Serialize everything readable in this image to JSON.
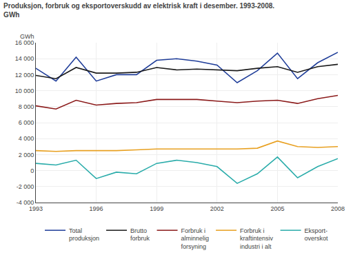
{
  "chart_data": {
    "type": "line",
    "title": "Produksjon, forbruk og eksportoverskudd av elektrisk kraft i desember. 1993-2008.",
    "subtitle": "GWh",
    "ylabel": "GWh",
    "x": [
      1993,
      1994,
      1995,
      1996,
      1997,
      1998,
      1999,
      2000,
      2001,
      2002,
      2003,
      2004,
      2005,
      2006,
      2007,
      2008
    ],
    "series": [
      {
        "name": "Total\nproduksjon",
        "color": "#1f3d99",
        "values": [
          12800,
          11200,
          14200,
          11200,
          12000,
          12000,
          13800,
          14000,
          13700,
          13200,
          11000,
          12500,
          14700,
          11500,
          13500,
          14800
        ]
      },
      {
        "name": "Brutto\nforbruk",
        "color": "#1a1a1a",
        "values": [
          11900,
          11500,
          12900,
          12200,
          12200,
          12300,
          12900,
          12600,
          12700,
          12600,
          12500,
          12800,
          13000,
          12300,
          13000,
          13300
        ]
      },
      {
        "name": "Forbruk i\nalminnelig\nforsyning",
        "color": "#8b1a1a",
        "values": [
          8100,
          7700,
          8800,
          8200,
          8400,
          8500,
          8900,
          8900,
          8900,
          8700,
          8500,
          8700,
          8800,
          8400,
          9000,
          9400
        ]
      },
      {
        "name": "Forbruk i\nkraftintensiv\nindustri i alt",
        "color": "#e8a020",
        "values": [
          2500,
          2400,
          2500,
          2500,
          2500,
          2600,
          2700,
          2700,
          2700,
          2700,
          2700,
          2800,
          3700,
          3000,
          2900,
          3000
        ]
      },
      {
        "name": "Eksport-\noverskot",
        "color": "#2aacaa",
        "values": [
          900,
          700,
          1300,
          -1000,
          -200,
          -400,
          900,
          1300,
          1000,
          500,
          -1600,
          -400,
          1700,
          -900,
          500,
          1500
        ]
      }
    ],
    "xlim": [
      1993,
      2008
    ],
    "xticks": [
      1993,
      1996,
      1999,
      2002,
      2005,
      2008
    ],
    "ylim": [
      -4000,
      16000
    ],
    "yticks": [
      {
        "value": -4000,
        "label": "-4 000"
      },
      {
        "value": -2000,
        "label": "-2 000"
      },
      0,
      {
        "value": 2000,
        "label": "2 000"
      },
      {
        "value": 4000,
        "label": "4 000"
      },
      {
        "value": 6000,
        "label": "6 000"
      },
      {
        "value": 8000,
        "label": "8 000"
      },
      {
        "value": 10000,
        "label": "10 000"
      },
      {
        "value": 12000,
        "label": "12 000"
      },
      {
        "value": 14000,
        "label": "14 000"
      },
      {
        "value": 16000,
        "label": "16 000"
      }
    ],
    "grid": true,
    "legend": "bottom"
  }
}
